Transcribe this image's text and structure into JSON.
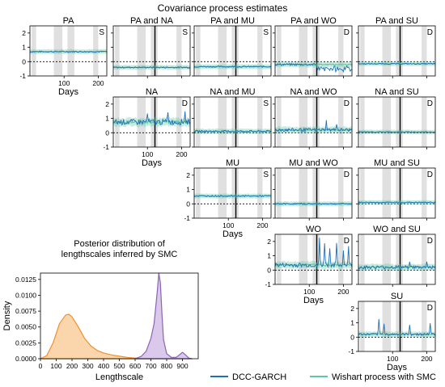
{
  "figure": {
    "title": "Covariance process estimates",
    "legend": [
      {
        "label": "DCC-GARCH",
        "color": "#1f6fb2"
      },
      {
        "label": "Wishart process with SMC",
        "color": "#5cc6a6"
      }
    ],
    "shading_color": "#e0e0e0"
  },
  "chart_data": [
    {
      "type": "line",
      "panel": "PA",
      "title": "PA",
      "badge": "S",
      "diag": 0,
      "ylim": [
        -1,
        2.5
      ],
      "yticks": [
        -1,
        0,
        1,
        2
      ],
      "xticks": [
        100,
        200
      ],
      "xlabel": "Days",
      "changepoint": false,
      "level": 0.7,
      "noise": 0.05,
      "spikes": [],
      "dip": 0
    },
    {
      "type": "line",
      "panel": "PA and NA",
      "title": "PA and NA",
      "badge": "S",
      "ylim": [
        -1,
        2.5
      ],
      "level": -0.4,
      "noise": 0.05,
      "changepoint": true,
      "spikes": [],
      "dip": 0
    },
    {
      "type": "line",
      "panel": "PA and MU",
      "title": "PA and MU",
      "badge": "S",
      "ylim": [
        -1,
        2.5
      ],
      "level": -0.35,
      "noise": 0.05,
      "changepoint": true,
      "spikes": [],
      "dip": 0
    },
    {
      "type": "line",
      "panel": "PA and WO",
      "title": "PA and WO",
      "badge": "D",
      "ylim": [
        -1,
        2.5
      ],
      "level": -0.2,
      "noise": 0.08,
      "changepoint": true,
      "spikes": [],
      "dip": -0.5
    },
    {
      "type": "line",
      "panel": "PA and SU",
      "title": "PA and SU",
      "badge": "D",
      "ylim": [
        -1,
        2.5
      ],
      "level": -0.15,
      "noise": 0.04,
      "changepoint": true,
      "spikes": [],
      "dip": 0
    },
    {
      "type": "line",
      "panel": "NA",
      "title": "NA",
      "badge": "D",
      "diag": 1,
      "ylim": [
        -1,
        2.5
      ],
      "yticks": [
        -1,
        0,
        1,
        2
      ],
      "xticks": [
        100,
        200
      ],
      "xlabel": "Days",
      "level": 0.75,
      "noise": 0.2,
      "changepoint": true,
      "spikes": [
        {
          "x": 100,
          "h": 0.6
        },
        {
          "x": 160,
          "h": 0.8
        },
        {
          "x": 210,
          "h": 0.7
        }
      ],
      "dip": 0
    },
    {
      "type": "line",
      "panel": "NA and MU",
      "title": "NA and MU",
      "badge": "S",
      "ylim": [
        -1,
        2.5
      ],
      "level": 0.1,
      "noise": 0.07,
      "changepoint": true,
      "spikes": [],
      "dip": 0
    },
    {
      "type": "line",
      "panel": "NA and WO",
      "title": "NA and WO",
      "badge": "D",
      "ylim": [
        -1,
        2.5
      ],
      "level": 0.2,
      "noise": 0.12,
      "changepoint": true,
      "spikes": [
        {
          "x": 150,
          "h": 0.6
        },
        {
          "x": 180,
          "h": 0.5
        }
      ],
      "dip": 0
    },
    {
      "type": "line",
      "panel": "NA and SU",
      "title": "NA and SU",
      "badge": "D",
      "ylim": [
        -1,
        2.5
      ],
      "level": 0.05,
      "noise": 0.04,
      "changepoint": true,
      "spikes": [],
      "dip": 0
    },
    {
      "type": "line",
      "panel": "MU",
      "title": "MU",
      "badge": "S",
      "diag": 2,
      "ylim": [
        -1,
        2.5
      ],
      "yticks": [
        -1,
        0,
        1,
        2
      ],
      "xticks": [
        100,
        200
      ],
      "xlabel": "Days",
      "level": 0.55,
      "noise": 0.05,
      "changepoint": true,
      "spikes": [],
      "dip": 0
    },
    {
      "type": "line",
      "panel": "MU and WO",
      "title": "MU and WO",
      "badge": "D",
      "ylim": [
        -1,
        2.5
      ],
      "level": 0.0,
      "noise": 0.05,
      "changepoint": true,
      "spikes": [],
      "dip": 0
    },
    {
      "type": "line",
      "panel": "MU and SU",
      "title": "MU and SU",
      "badge": "D",
      "ylim": [
        -1,
        2.5
      ],
      "level": 0.1,
      "noise": 0.04,
      "changepoint": true,
      "spikes": [],
      "dip": 0
    },
    {
      "type": "line",
      "panel": "WO",
      "title": "WO",
      "badge": "D",
      "diag": 3,
      "ylim": [
        -1,
        2.5
      ],
      "yticks": [
        -1,
        0,
        1,
        2
      ],
      "xticks": [
        100,
        200
      ],
      "xlabel": "Days",
      "level": 0.35,
      "noise": 0.15,
      "changepoint": true,
      "spikes": [
        {
          "x": 130,
          "h": 1.8
        },
        {
          "x": 145,
          "h": 1.6
        },
        {
          "x": 160,
          "h": 1.3
        },
        {
          "x": 180,
          "h": 1.4
        },
        {
          "x": 200,
          "h": 1.0
        },
        {
          "x": 215,
          "h": 1.2
        }
      ],
      "dip": 0
    },
    {
      "type": "line",
      "panel": "WO and SU",
      "title": "WO and SU",
      "badge": "D",
      "ylim": [
        -1,
        2.5
      ],
      "level": 0.2,
      "noise": 0.12,
      "changepoint": true,
      "spikes": [
        {
          "x": 150,
          "h": 0.5
        },
        {
          "x": 200,
          "h": 0.4
        }
      ],
      "dip": 0
    },
    {
      "type": "line",
      "panel": "SU",
      "title": "SU",
      "badge": "D",
      "diag": 4,
      "ylim": [
        -1,
        2.5
      ],
      "yticks": [
        -1,
        0,
        1,
        2
      ],
      "xticks": [
        100,
        200
      ],
      "xlabel": "Days",
      "level": 0.2,
      "noise": 0.08,
      "changepoint": true,
      "spikes": [
        {
          "x": 60,
          "h": 1.0
        },
        {
          "x": 75,
          "h": 0.8
        },
        {
          "x": 150,
          "h": 0.7
        },
        {
          "x": 210,
          "h": 0.8
        }
      ],
      "dip": 0
    },
    {
      "type": "area",
      "panel": "lengthscales",
      "title": "Posterior distribution of lengthscales inferred by SMC",
      "title_lines": [
        "Posterior distribution of",
        "lengthscales inferred by SMC"
      ],
      "xlabel": "Lengthscale",
      "ylabel": "Density",
      "xlim": [
        0,
        1000
      ],
      "ylim": [
        0,
        0.0135
      ],
      "xticks": [
        0,
        100,
        200,
        300,
        400,
        500,
        600,
        700,
        800,
        900
      ],
      "yticks": [
        "0.0000",
        "0.0025",
        "0.0050",
        "0.0075",
        "0.0100",
        "0.0125"
      ],
      "series": [
        {
          "color": "#f28e2b",
          "fill": "#f9c891",
          "x": [
            0,
            40,
            80,
            120,
            160,
            180,
            200,
            240,
            280,
            320,
            360,
            400,
            450,
            500,
            550,
            600,
            650,
            700
          ],
          "y": [
            0,
            0.0005,
            0.0025,
            0.0055,
            0.0069,
            0.007,
            0.0066,
            0.005,
            0.0032,
            0.002,
            0.0013,
            0.0009,
            0.0006,
            0.0004,
            0.0002,
            0.0001,
            3e-05,
            0
          ]
        },
        {
          "color": "#8b63b8",
          "fill": "#cdb7e3",
          "x": [
            600,
            640,
            670,
            700,
            720,
            740,
            750,
            760,
            770,
            780,
            800,
            830,
            860,
            880,
            900,
            920,
            940,
            960
          ],
          "y": [
            0,
            0.0004,
            0.0012,
            0.0032,
            0.0055,
            0.0105,
            0.0135,
            0.012,
            0.007,
            0.003,
            0.0008,
            0.0002,
            0.0002,
            0.0006,
            0.001,
            0.0006,
            0.0001,
            0
          ]
        }
      ]
    }
  ]
}
